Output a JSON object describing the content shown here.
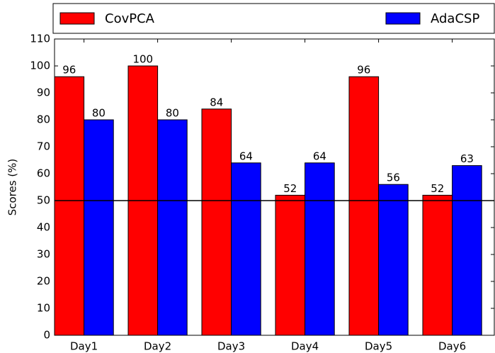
{
  "chart_data": {
    "type": "bar",
    "categories": [
      "Day1",
      "Day2",
      "Day3",
      "Day4",
      "Day5",
      "Day6"
    ],
    "series": [
      {
        "name": "CovPCA",
        "color": "#ff0000",
        "values": [
          96,
          100,
          84,
          52,
          96,
          52
        ]
      },
      {
        "name": "AdaCSP",
        "color": "#0000ff",
        "values": [
          80,
          80,
          64,
          64,
          56,
          63
        ]
      }
    ],
    "ylabel": "Scores (%)",
    "ylim": [
      0,
      110
    ],
    "yticks": [
      0,
      10,
      20,
      30,
      40,
      50,
      60,
      70,
      80,
      90,
      100,
      110
    ],
    "hline": 50,
    "legend": "top"
  }
}
